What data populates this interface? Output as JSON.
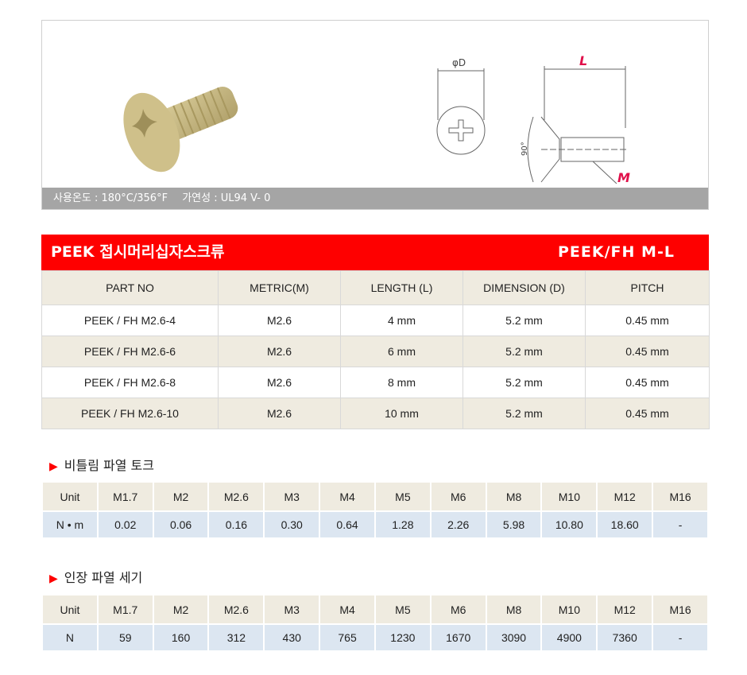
{
  "product": {
    "temp_label": "사용온도 : 180°C/356°F",
    "flame_label": "가연성 : UL94 V- 0",
    "diagram_labels": {
      "diameter": "φD",
      "length": "L",
      "metric": "M",
      "angle": "90°"
    }
  },
  "header": {
    "title": "PEEK 접시머리십자스크류",
    "code": "PEEK/FH M-L",
    "color": "#fe0000"
  },
  "spec_table": {
    "columns": [
      "PART NO",
      "METRIC(M)",
      "LENGTH (L)",
      "DIMENSION (D)",
      "PITCH"
    ],
    "rows": [
      [
        "PEEK / FH M2.6-4",
        "M2.6",
        "4 mm",
        "5.2 mm",
        "0.45 mm"
      ],
      [
        "PEEK / FH M2.6-6",
        "M2.6",
        "6 mm",
        "5.2 mm",
        "0.45 mm"
      ],
      [
        "PEEK / FH M2.6-8",
        "M2.6",
        "8 mm",
        "5.2 mm",
        "0.45 mm"
      ],
      [
        "PEEK / FH M2.6-10",
        "M2.6",
        "10 mm",
        "5.2 mm",
        "0.45 mm"
      ]
    ]
  },
  "torque": {
    "title": "비틀림 파열 토크",
    "header": [
      "Unit",
      "M1.7",
      "M2",
      "M2.6",
      "M3",
      "M4",
      "M5",
      "M6",
      "M8",
      "M10",
      "M12",
      "M16"
    ],
    "values": [
      "N • m",
      "0.02",
      "0.06",
      "0.16",
      "0.30",
      "0.64",
      "1.28",
      "2.26",
      "5.98",
      "10.80",
      "18.60",
      "-"
    ]
  },
  "tensile": {
    "title": "인장 파열 세기",
    "header": [
      "Unit",
      "M1.7",
      "M2",
      "M2.6",
      "M3",
      "M4",
      "M5",
      "M6",
      "M8",
      "M10",
      "M12",
      "M16"
    ],
    "values": [
      "N",
      "59",
      "160",
      "312",
      "430",
      "765",
      "1230",
      "1670",
      "3090",
      "4900",
      "7360",
      "-"
    ]
  }
}
